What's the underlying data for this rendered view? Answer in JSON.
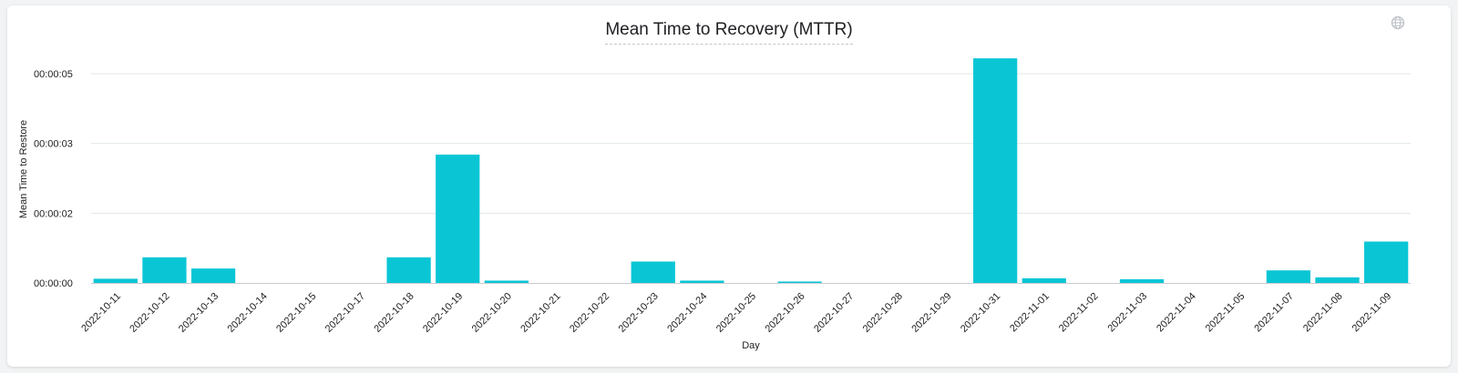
{
  "header": {
    "title": "Mean Time to Recovery (MTTR)",
    "globe_icon": "globe-icon"
  },
  "chart_data": {
    "type": "bar",
    "title": "Mean Time to Recovery (MTTR)",
    "xlabel": "Day",
    "ylabel": "Mean Time to Restore",
    "y_unit": "seconds",
    "y_ticks": [
      0,
      1.5,
      3,
      4.5
    ],
    "y_tick_labels": [
      "00:00:00",
      "00:00:02",
      "00:00:03",
      "00:00:05"
    ],
    "ylim": [
      0,
      4.5
    ],
    "grid": true,
    "categories": [
      "2022-10-11",
      "2022-10-12",
      "2022-10-13",
      "2022-10-14",
      "2022-10-15",
      "2022-10-17",
      "2022-10-18",
      "2022-10-19",
      "2022-10-20",
      "2022-10-21",
      "2022-10-22",
      "2022-10-23",
      "2022-10-24",
      "2022-10-25",
      "2022-10-26",
      "2022-10-27",
      "2022-10-28",
      "2022-10-29",
      "2022-10-31",
      "2022-11-01",
      "2022-11-02",
      "2022-11-03",
      "2022-11-04",
      "2022-11-05",
      "2022-11-07",
      "2022-11-08",
      "2022-11-09"
    ],
    "values": [
      0.09,
      0.55,
      0.31,
      0,
      0,
      0,
      0.55,
      2.76,
      0.05,
      0,
      0,
      0.46,
      0.05,
      0,
      0.03,
      0,
      0,
      0,
      4.83,
      0.1,
      0,
      0.08,
      0,
      0,
      0.27,
      0.12,
      0.89
    ],
    "bar_color": "#0ac6d5",
    "grid_color": "#e3e6ea",
    "axis_color": "#c9ccd1"
  }
}
